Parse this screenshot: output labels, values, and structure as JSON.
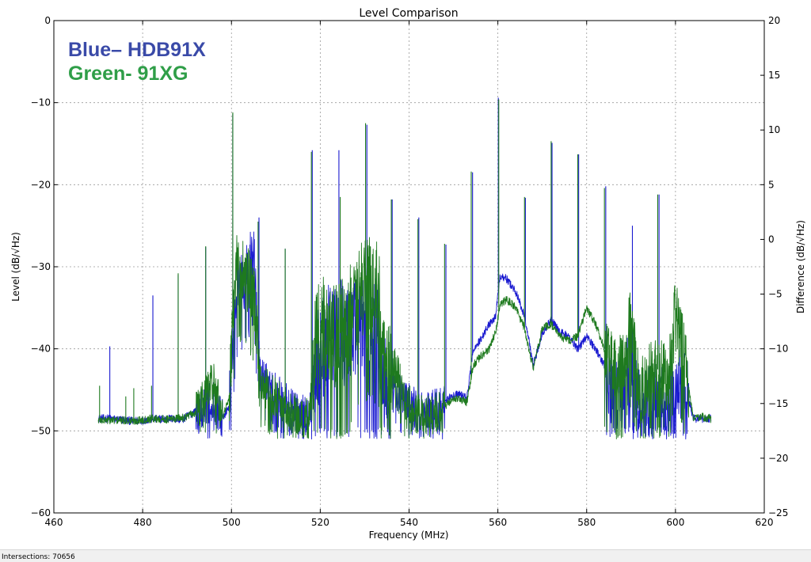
{
  "chart_data": {
    "type": "line",
    "title": "Level Comparison",
    "xlabel": "Frequency (MHz)",
    "ylabel": "Level (dB/√Hz)",
    "y2label": "Difference (dB/√Hz)",
    "xlim": [
      460,
      620
    ],
    "ylim": [
      -60,
      0
    ],
    "y2lim": [
      -25,
      20
    ],
    "xticks": [
      460,
      480,
      500,
      520,
      540,
      560,
      580,
      600,
      620
    ],
    "yticks": [
      -60,
      -50,
      -40,
      -30,
      -20,
      -10,
      0
    ],
    "y2ticks": [
      -25,
      -20,
      -15,
      -10,
      -5,
      0,
      5,
      10,
      15,
      20
    ],
    "grid": true,
    "legend_placement": "top-left",
    "series": [
      {
        "name": "Blue– HDB91X",
        "color": "#1a1ad0",
        "legend_color": "#3a4aa8",
        "x": [
          470,
          472,
          474,
          478,
          482,
          486,
          489,
          492,
          494.5,
          496,
          498,
          499.5,
          501,
          503,
          505,
          506.5,
          509,
          512,
          515,
          517.5,
          519,
          521,
          524,
          527,
          530,
          533,
          535,
          537,
          539,
          542,
          545,
          547,
          549,
          551,
          553,
          554.5,
          556,
          558,
          559.5,
          560.5,
          562,
          564,
          566,
          568,
          570,
          572,
          574,
          576,
          578,
          580,
          582,
          584,
          586,
          588,
          590,
          592,
          594,
          596,
          598,
          600,
          602,
          604,
          606,
          608
        ],
        "values": [
          -48.5,
          -48.5,
          -48.6,
          -48.8,
          -48.6,
          -48.5,
          -48.6,
          -47.5,
          -46.8,
          -46.5,
          -48.5,
          -47,
          -33,
          -31,
          -29,
          -43.5,
          -44.5,
          -46.5,
          -48,
          -48.2,
          -42,
          -39,
          -38,
          -38,
          -37,
          -38,
          -46,
          -45,
          -46,
          -47.5,
          -47.5,
          -47,
          -46,
          -45.5,
          -46,
          -40,
          -39,
          -37,
          -36,
          -31,
          -31.5,
          -33,
          -36,
          -42,
          -38,
          -36.5,
          -38,
          -38.5,
          -40,
          -38.5,
          -40,
          -42,
          -46,
          -44,
          -42,
          -47,
          -46,
          -45.5,
          -47.5,
          -45,
          -44,
          -48.5,
          -48.5,
          -48.5
        ],
        "spikes": [
          {
            "x": 472.6,
            "y": -39.7
          },
          {
            "x": 482.3,
            "y": -33.5
          },
          {
            "x": 488.0,
            "y": -31.0
          },
          {
            "x": 494.2,
            "y": -27.6
          },
          {
            "x": 500.3,
            "y": -11.4
          },
          {
            "x": 506.2,
            "y": -24.0
          },
          {
            "x": 512.1,
            "y": -27.8
          },
          {
            "x": 518.2,
            "y": -15.8
          },
          {
            "x": 524.2,
            "y": -15.8
          },
          {
            "x": 530.5,
            "y": -12.7
          },
          {
            "x": 536.2,
            "y": -21.8
          },
          {
            "x": 542.2,
            "y": -24.0
          },
          {
            "x": 548.3,
            "y": -27.3
          },
          {
            "x": 554.3,
            "y": -18.5
          },
          {
            "x": 560.1,
            "y": -9.4
          },
          {
            "x": 566.2,
            "y": -21.6
          },
          {
            "x": 572.2,
            "y": -14.9
          },
          {
            "x": 578.2,
            "y": -16.3
          },
          {
            "x": 584.3,
            "y": -20.2
          },
          {
            "x": 590.3,
            "y": -25.0
          },
          {
            "x": 596.3,
            "y": -21.2
          }
        ]
      },
      {
        "name": "Green- 91XG",
        "color": "#1e7a1e",
        "legend_color": "#2f9e48",
        "x": [
          470,
          472,
          474,
          478,
          482,
          486,
          489,
          492,
          494.5,
          496,
          498,
          499.5,
          501,
          503,
          505,
          506.5,
          509,
          512,
          515,
          517.5,
          519,
          521,
          524,
          527,
          530,
          533,
          535,
          537,
          539,
          542,
          545,
          547,
          549,
          551,
          553,
          554.5,
          556,
          558,
          559.5,
          560.5,
          562,
          564,
          566,
          568,
          570,
          572,
          574,
          576,
          578,
          580,
          582,
          584,
          586,
          588,
          590,
          592,
          594,
          596,
          598,
          600,
          602,
          604,
          606,
          608
        ],
        "values": [
          -48.7,
          -48.7,
          -48.7,
          -48.8,
          -48.5,
          -48.6,
          -48.4,
          -47.8,
          -45,
          -44,
          -48.5,
          -46,
          -30,
          -31,
          -33,
          -44,
          -45.5,
          -47,
          -48.2,
          -48.5,
          -39,
          -37,
          -38.5,
          -36,
          -32,
          -33,
          -44,
          -42,
          -46,
          -48,
          -48,
          -47.5,
          -46.5,
          -46,
          -46.5,
          -42,
          -41,
          -40,
          -38,
          -34.5,
          -34,
          -35,
          -37.5,
          -42.5,
          -37.5,
          -37,
          -38.5,
          -39,
          -38.5,
          -35,
          -37,
          -40,
          -43,
          -42,
          -37,
          -45,
          -44,
          -42.5,
          -44,
          -36,
          -41,
          -48.5,
          -48.3,
          -48.5
        ],
        "spikes": [
          {
            "x": 470.3,
            "y": -44.5
          },
          {
            "x": 476.2,
            "y": -45.8
          },
          {
            "x": 478.0,
            "y": -44.8
          },
          {
            "x": 482.0,
            "y": -44.5
          },
          {
            "x": 488.0,
            "y": -30.8
          },
          {
            "x": 494.2,
            "y": -27.5
          },
          {
            "x": 500.3,
            "y": -11.2
          },
          {
            "x": 506.0,
            "y": -24.5
          },
          {
            "x": 512.1,
            "y": -27.8
          },
          {
            "x": 518.0,
            "y": -16.0
          },
          {
            "x": 524.5,
            "y": -21.5
          },
          {
            "x": 530.2,
            "y": -12.5
          },
          {
            "x": 536.0,
            "y": -21.8
          },
          {
            "x": 542.0,
            "y": -24.2
          },
          {
            "x": 548.0,
            "y": -27.2
          },
          {
            "x": 554.0,
            "y": -18.4
          },
          {
            "x": 560.2,
            "y": -9.6
          },
          {
            "x": 566.0,
            "y": -21.5
          },
          {
            "x": 572.0,
            "y": -14.7
          },
          {
            "x": 578.0,
            "y": -16.3
          },
          {
            "x": 584.0,
            "y": -20.4
          },
          {
            "x": 596.0,
            "y": -21.2
          }
        ]
      }
    ]
  },
  "legend": {
    "blue_label": "Blue– HDB91X",
    "green_label": "Green- 91XG"
  },
  "status_bar": {
    "text": "Intersections: 70656"
  }
}
